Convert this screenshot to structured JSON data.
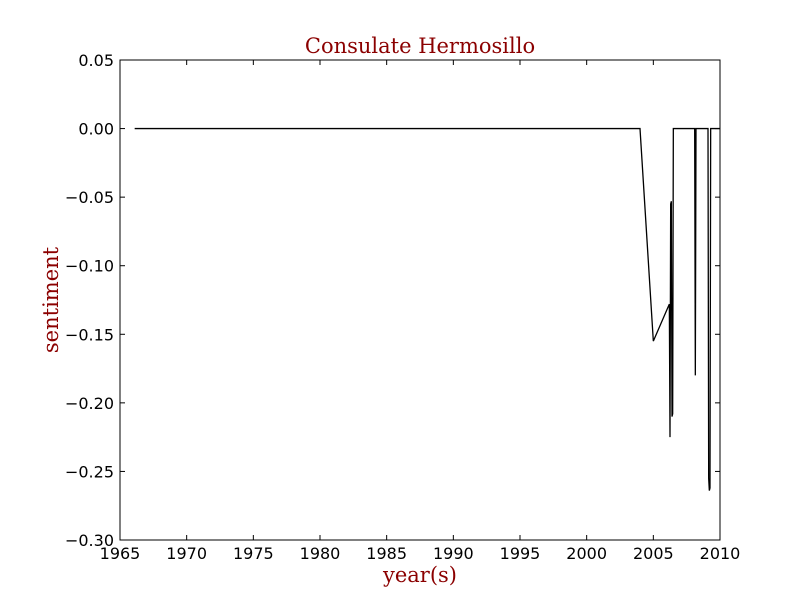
{
  "chart_data": {
    "type": "line",
    "title": "Consulate Hermosillo",
    "xlabel": "year(s)",
    "ylabel": "sentiment",
    "xlim": [
      1965,
      2010
    ],
    "ylim": [
      -0.3,
      0.05
    ],
    "x_ticks": [
      1965,
      1970,
      1975,
      1980,
      1985,
      1990,
      1995,
      2000,
      2005,
      2010
    ],
    "x_tick_labels": [
      "1965",
      "1970",
      "1975",
      "1980",
      "1985",
      "1990",
      "1995",
      "2000",
      "2005",
      "2010"
    ],
    "y_ticks": [
      0.05,
      0.0,
      -0.05,
      -0.1,
      -0.15,
      -0.2,
      -0.25,
      -0.3
    ],
    "y_tick_labels": [
      "0.05",
      "0.00",
      "−0.05",
      "−0.10",
      "−0.15",
      "−0.20",
      "−0.25",
      "−0.30"
    ],
    "grid": false,
    "series": [
      {
        "color": "#000000",
        "x": [
          1966.1,
          2004.0,
          2005.0,
          2006.2,
          2006.25,
          2006.3,
          2006.35,
          2006.4,
          2006.45,
          2006.5,
          2006.6,
          2007.0,
          2007.5,
          2008.0,
          2008.1,
          2008.15,
          2008.2,
          2008.3,
          2008.6,
          2009.0,
          2009.1,
          2009.15,
          2009.2,
          2009.25,
          2009.3,
          2009.4,
          2009.6,
          2010.0
        ],
        "y": [
          0.0,
          0.0,
          -0.155,
          -0.128,
          -0.225,
          -0.055,
          -0.053,
          -0.21,
          -0.208,
          0.0,
          0.0,
          0.0,
          0.0,
          0.0,
          0.0,
          -0.18,
          0.0,
          0.0,
          0.0,
          0.0,
          0.0,
          -0.255,
          -0.264,
          -0.262,
          0.0,
          0.0,
          0.0,
          0.0
        ]
      }
    ]
  }
}
